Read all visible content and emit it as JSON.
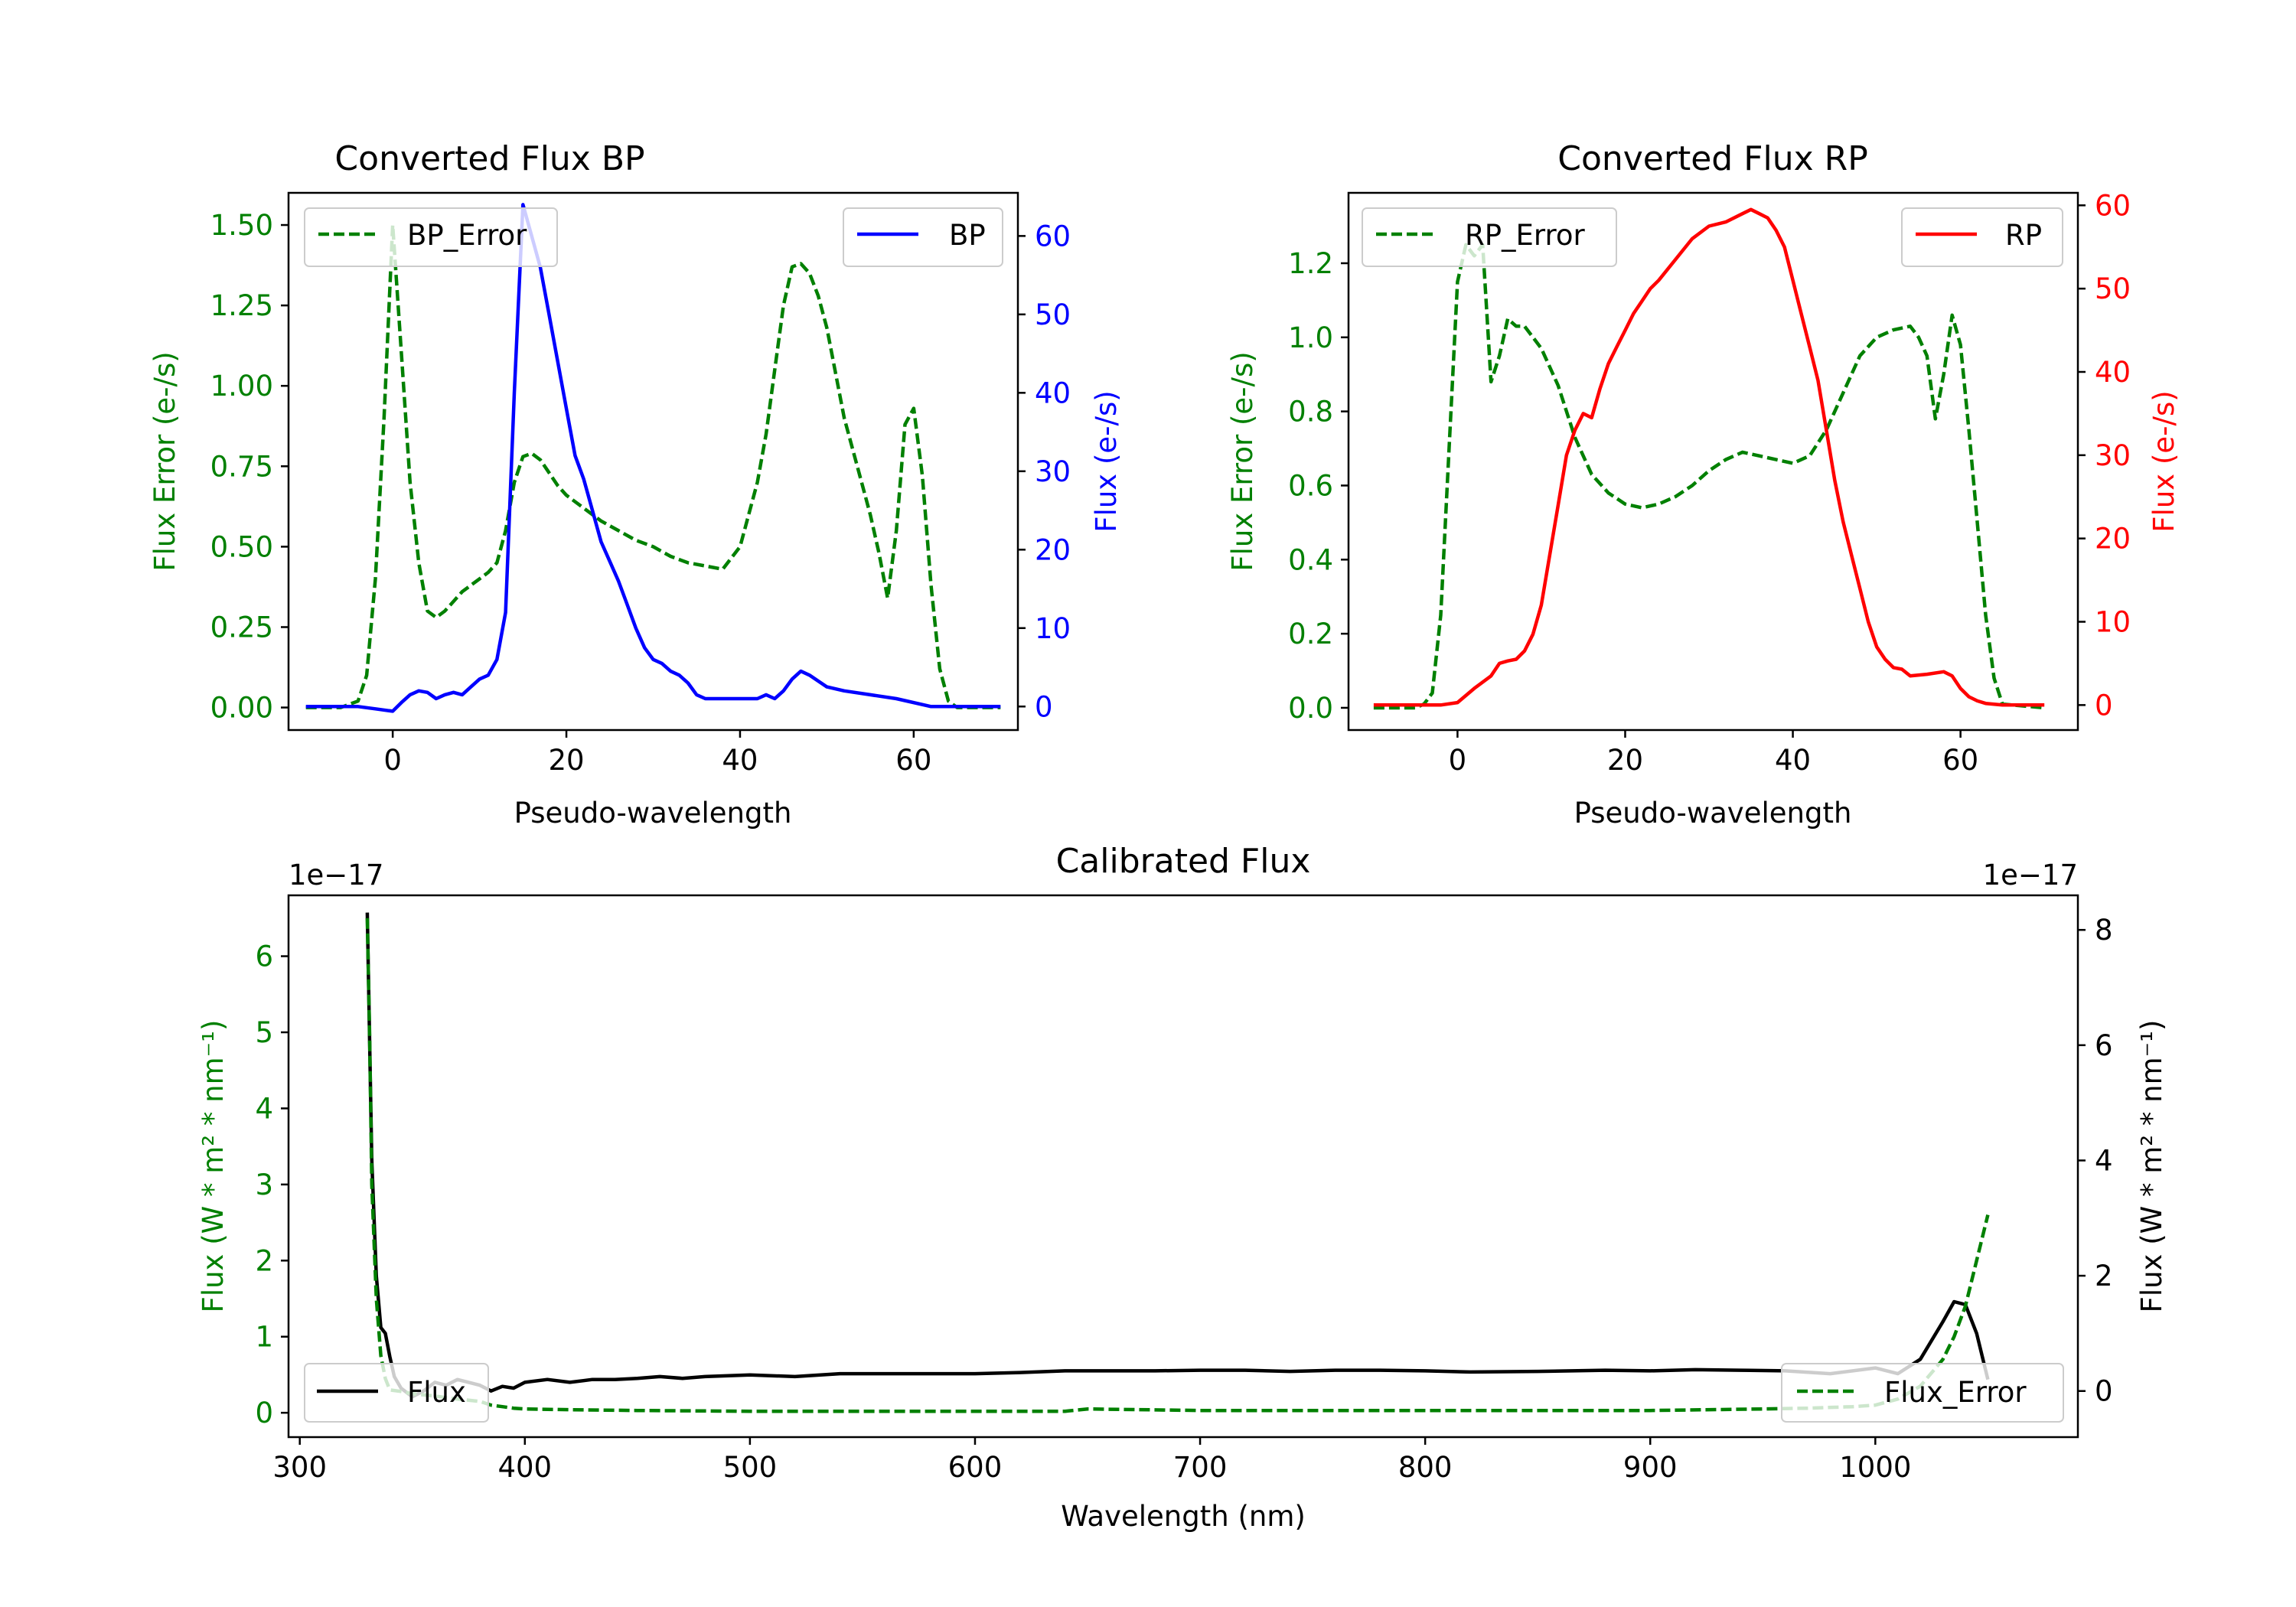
{
  "chart_data": [
    {
      "id": "bp",
      "type": "line",
      "title": "Converted Flux BP",
      "xlabel": "Pseudo-wavelength",
      "ylabel_left": "Flux Error (e-/s)",
      "ylabel_right": "Flux (e-/s)",
      "xlim": [
        -12,
        72
      ],
      "xticks": [
        "0",
        "20",
        "40",
        "60"
      ],
      "xtick_values": [
        0,
        20,
        40,
        60
      ],
      "ylim_left": [
        -0.07,
        1.6
      ],
      "yticks_left": [
        "0.00",
        "0.25",
        "0.50",
        "0.75",
        "1.00",
        "1.25",
        "1.50"
      ],
      "ytick_values_left": [
        0,
        0.25,
        0.5,
        0.75,
        1.0,
        1.25,
        1.5
      ],
      "ylim_right": [
        -3.0,
        65.5
      ],
      "yticks_right": [
        "0",
        "10",
        "20",
        "30",
        "40",
        "50",
        "60"
      ],
      "ytick_values_right": [
        0,
        10,
        20,
        30,
        40,
        50,
        60
      ],
      "left_color": "#008000",
      "right_color": "#0000ff",
      "series": [
        {
          "name": "BP_Error",
          "axis": "left",
          "style": "dashed",
          "color": "#008000",
          "x": [
            -10,
            -6,
            -4,
            -3,
            -2,
            -1,
            0,
            1,
            2,
            3,
            4,
            5,
            6,
            7,
            8,
            9,
            10,
            11,
            12,
            13,
            14,
            15,
            16,
            17,
            18,
            19,
            20,
            22,
            24,
            26,
            28,
            30,
            32,
            34,
            36,
            38,
            40,
            42,
            43,
            44,
            45,
            46,
            47,
            48,
            49,
            50,
            52,
            54,
            55,
            56,
            57,
            58,
            59,
            60,
            61,
            62,
            63,
            64,
            65,
            66,
            70
          ],
          "y": [
            0.0,
            0.0,
            0.02,
            0.1,
            0.4,
            0.9,
            1.5,
            1.1,
            0.7,
            0.45,
            0.3,
            0.28,
            0.3,
            0.33,
            0.36,
            0.38,
            0.4,
            0.42,
            0.45,
            0.55,
            0.7,
            0.78,
            0.79,
            0.77,
            0.73,
            0.69,
            0.66,
            0.62,
            0.58,
            0.55,
            0.52,
            0.5,
            0.47,
            0.45,
            0.44,
            0.43,
            0.5,
            0.7,
            0.85,
            1.05,
            1.25,
            1.37,
            1.38,
            1.35,
            1.28,
            1.18,
            0.9,
            0.7,
            0.6,
            0.48,
            0.34,
            0.55,
            0.88,
            0.93,
            0.72,
            0.38,
            0.12,
            0.02,
            0.0,
            0.0,
            0.0
          ]
        },
        {
          "name": "BP",
          "axis": "right",
          "style": "solid",
          "color": "#0000ff",
          "x": [
            -10,
            -4,
            -2,
            0,
            1,
            2,
            3,
            4,
            5,
            6,
            7,
            8,
            9,
            10,
            11,
            12,
            13,
            14,
            15,
            16,
            17,
            18,
            19,
            20,
            21,
            22,
            23,
            24,
            25,
            26,
            27,
            28,
            29,
            30,
            31,
            32,
            33,
            34,
            35,
            36,
            38,
            40,
            41,
            42,
            43,
            44,
            45,
            46,
            47,
            48,
            50,
            52,
            55,
            58,
            62,
            66,
            70
          ],
          "y": [
            0.0,
            0.0,
            -0.3,
            -0.6,
            0.5,
            1.5,
            2.0,
            1.8,
            1.0,
            1.5,
            1.8,
            1.5,
            2.5,
            3.5,
            4.0,
            6.0,
            12.0,
            40.0,
            64.0,
            60.0,
            56.0,
            50.0,
            44.0,
            38.0,
            32.0,
            29.0,
            25.0,
            21.0,
            18.5,
            16.0,
            13.0,
            10.0,
            7.5,
            6.0,
            5.5,
            4.5,
            4.0,
            3.0,
            1.5,
            1.0,
            1.0,
            1.0,
            1.0,
            1.0,
            1.5,
            1.0,
            2.0,
            3.5,
            4.5,
            4.0,
            2.5,
            2.0,
            1.5,
            1.0,
            0.0,
            0.0,
            0.0
          ]
        }
      ],
      "legend": [
        {
          "label": "BP_Error",
          "position": "upper-left"
        },
        {
          "label": "BP",
          "position": "upper-right"
        }
      ]
    },
    {
      "id": "rp",
      "type": "line",
      "title": "Converted Flux RP",
      "xlabel": "Pseudo-wavelength",
      "ylabel_left": "Flux Error (e-/s)",
      "ylabel_right": "Flux (e-/s)",
      "xlim": [
        -13,
        74
      ],
      "xticks": [
        "0",
        "20",
        "40",
        "60"
      ],
      "xtick_values": [
        0,
        20,
        40,
        60
      ],
      "ylim_left": [
        -0.06,
        1.39
      ],
      "yticks_left": [
        "0.0",
        "0.2",
        "0.4",
        "0.6",
        "0.8",
        "1.0",
        "1.2"
      ],
      "ytick_values_left": [
        0,
        0.2,
        0.4,
        0.6,
        0.8,
        1.0,
        1.2
      ],
      "ylim_right": [
        -3.0,
        61.5
      ],
      "yticks_right": [
        "0",
        "10",
        "20",
        "30",
        "40",
        "50",
        "60"
      ],
      "ytick_values_right": [
        0,
        10,
        20,
        30,
        40,
        50,
        60
      ],
      "left_color": "#008000",
      "right_color": "#ff0000",
      "series": [
        {
          "name": "RP_Error",
          "axis": "left",
          "style": "dashed",
          "color": "#008000",
          "x": [
            -10,
            -5,
            -4,
            -3,
            -2,
            -1,
            0,
            1,
            2,
            3,
            4,
            5,
            6,
            7,
            8,
            9,
            10,
            11,
            12,
            13,
            14,
            15,
            16,
            18,
            20,
            22,
            24,
            26,
            28,
            30,
            32,
            34,
            36,
            38,
            40,
            42,
            44,
            46,
            48,
            50,
            52,
            54,
            55,
            56,
            57,
            58,
            59,
            60,
            61,
            62,
            63,
            64,
            65,
            70
          ],
          "y": [
            0.0,
            0.0,
            0.01,
            0.04,
            0.25,
            0.7,
            1.15,
            1.25,
            1.22,
            1.25,
            0.88,
            0.95,
            1.05,
            1.03,
            1.03,
            1.0,
            0.97,
            0.92,
            0.87,
            0.8,
            0.73,
            0.68,
            0.63,
            0.58,
            0.55,
            0.54,
            0.55,
            0.57,
            0.6,
            0.64,
            0.67,
            0.69,
            0.68,
            0.67,
            0.66,
            0.68,
            0.75,
            0.85,
            0.95,
            1.0,
            1.02,
            1.03,
            1.0,
            0.95,
            0.78,
            0.9,
            1.06,
            0.98,
            0.75,
            0.5,
            0.25,
            0.08,
            0.01,
            0.0
          ]
        },
        {
          "name": "RP",
          "axis": "right",
          "style": "solid",
          "color": "#ff0000",
          "x": [
            -10,
            -2,
            0,
            2,
            4,
            5,
            6,
            7,
            8,
            9,
            10,
            11,
            12,
            13,
            14,
            15,
            16,
            17,
            18,
            19,
            20,
            21,
            22,
            23,
            24,
            26,
            28,
            30,
            32,
            34,
            35,
            36,
            37,
            38,
            39,
            40,
            41,
            42,
            43,
            44,
            45,
            46,
            47,
            48,
            49,
            50,
            51,
            52,
            53,
            54,
            56,
            58,
            59,
            60,
            61,
            62,
            63,
            65,
            70
          ],
          "y": [
            0.0,
            0.0,
            0.3,
            2.0,
            3.5,
            5.0,
            5.3,
            5.5,
            6.5,
            8.5,
            12.0,
            18.0,
            24.0,
            30.0,
            33.0,
            35.0,
            34.5,
            38.0,
            41.0,
            43.0,
            45.0,
            47.0,
            48.5,
            50.0,
            51.0,
            53.5,
            56.0,
            57.5,
            58.0,
            59.0,
            59.5,
            59.0,
            58.5,
            57.0,
            55.0,
            51.0,
            47.0,
            43.0,
            39.0,
            33.0,
            27.0,
            22.0,
            18.0,
            14.0,
            10.0,
            7.0,
            5.5,
            4.5,
            4.3,
            3.5,
            3.7,
            4.0,
            3.5,
            2.0,
            1.0,
            0.5,
            0.2,
            0.0,
            0.0
          ]
        }
      ],
      "legend": [
        {
          "label": "RP_Error",
          "position": "upper-left"
        },
        {
          "label": "RP",
          "position": "upper-right"
        }
      ]
    },
    {
      "id": "cal",
      "type": "line",
      "title": "Calibrated Flux",
      "xlabel": "Wavelength (nm)",
      "ylabel_left": "Flux (W * m² * nm⁻¹)",
      "ylabel_right": "Flux (W * m² * nm⁻¹)",
      "offset_left": "1e−17",
      "offset_right": "1e−17",
      "xlim": [
        295,
        1090
      ],
      "xticks": [
        "300",
        "400",
        "500",
        "600",
        "700",
        "800",
        "900",
        "1000"
      ],
      "xtick_values": [
        300,
        400,
        500,
        600,
        700,
        800,
        900,
        1000
      ],
      "ylim_left": [
        -0.32,
        6.8
      ],
      "yticks_left": [
        "0",
        "1",
        "2",
        "3",
        "4",
        "5",
        "6"
      ],
      "ytick_values_left": [
        0,
        1,
        2,
        3,
        4,
        5,
        6
      ],
      "ylim_right": [
        -0.8,
        8.6
      ],
      "yticks_right": [
        "0",
        "2",
        "4",
        "6",
        "8"
      ],
      "ytick_values_right": [
        0,
        2,
        4,
        6,
        8
      ],
      "left_color": "#008000",
      "right_color": "#000000",
      "series": [
        {
          "name": "Flux",
          "axis": "right",
          "style": "solid",
          "color": "#000000",
          "x": [
            330,
            332,
            334,
            336,
            338,
            340,
            342,
            345,
            350,
            355,
            360,
            365,
            370,
            375,
            380,
            385,
            390,
            395,
            400,
            410,
            420,
            430,
            440,
            450,
            460,
            470,
            480,
            500,
            520,
            540,
            560,
            580,
            600,
            620,
            640,
            650,
            660,
            680,
            700,
            720,
            740,
            760,
            780,
            800,
            820,
            850,
            880,
            900,
            920,
            940,
            960,
            980,
            1000,
            1010,
            1020,
            1030,
            1035,
            1040,
            1045,
            1050
          ],
          "y": [
            8.3,
            4.0,
            2.0,
            1.1,
            1.0,
            0.6,
            0.25,
            0.05,
            -0.1,
            0.0,
            0.15,
            0.1,
            0.2,
            0.15,
            0.1,
            0.0,
            0.08,
            0.05,
            0.15,
            0.2,
            0.15,
            0.2,
            0.2,
            0.22,
            0.25,
            0.22,
            0.25,
            0.28,
            0.25,
            0.3,
            0.3,
            0.3,
            0.3,
            0.32,
            0.35,
            0.35,
            0.35,
            0.35,
            0.36,
            0.36,
            0.34,
            0.36,
            0.36,
            0.35,
            0.33,
            0.34,
            0.36,
            0.35,
            0.37,
            0.36,
            0.35,
            0.3,
            0.4,
            0.3,
            0.55,
            1.2,
            1.55,
            1.5,
            1.0,
            0.2
          ]
        },
        {
          "name": "Flux_Error",
          "axis": "left",
          "style": "dashed",
          "color": "#008000",
          "x": [
            330,
            331,
            332,
            334,
            336,
            338,
            340,
            345,
            350,
            360,
            370,
            380,
            385,
            390,
            395,
            400,
            420,
            450,
            500,
            550,
            600,
            640,
            650,
            700,
            800,
            900,
            950,
            970,
            990,
            1000,
            1010,
            1020,
            1030,
            1035,
            1040,
            1045,
            1050
          ],
          "y": [
            6.5,
            5.0,
            3.0,
            1.5,
            0.75,
            0.45,
            0.3,
            0.28,
            0.25,
            0.22,
            0.18,
            0.15,
            0.1,
            0.08,
            0.06,
            0.05,
            0.04,
            0.03,
            0.02,
            0.02,
            0.02,
            0.02,
            0.05,
            0.03,
            0.03,
            0.03,
            0.05,
            0.06,
            0.08,
            0.1,
            0.18,
            0.35,
            0.7,
            1.0,
            1.4,
            2.0,
            2.6
          ]
        }
      ],
      "legend": [
        {
          "label": "Flux",
          "position": "lower-left"
        },
        {
          "label": "Flux_Error",
          "position": "lower-right"
        }
      ]
    }
  ]
}
